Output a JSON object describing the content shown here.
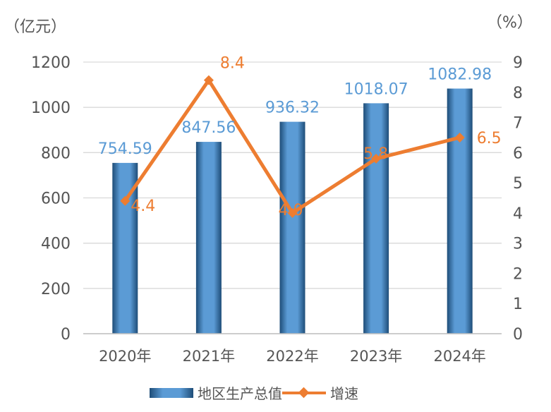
{
  "chart_data": {
    "type": "bar",
    "categories": [
      "2020年",
      "2021年",
      "2022年",
      "2023年",
      "2024年"
    ],
    "series": [
      {
        "name": "地区生产总值",
        "type": "bar",
        "axis": "left",
        "values": [
          754.59,
          847.56,
          936.32,
          1018.07,
          1082.98
        ],
        "labels": [
          "754.59",
          "847.56",
          "936.32",
          "1018.07",
          "1082.98"
        ],
        "color": "#5b9bd5"
      },
      {
        "name": "增速",
        "type": "line",
        "axis": "right",
        "values": [
          4.4,
          8.4,
          4.0,
          5.8,
          6.5
        ],
        "labels": [
          "4.4",
          "8.4",
          "4.0",
          "5.8",
          "6.5"
        ],
        "color": "#ed7d31"
      }
    ],
    "left_axis": {
      "unit": "（亿元）",
      "range": [
        0,
        1200
      ],
      "ticks": [
        "0",
        "200",
        "400",
        "600",
        "800",
        "1000",
        "1200"
      ]
    },
    "right_axis": {
      "unit": "（%）",
      "range": [
        0,
        9
      ],
      "ticks": [
        "0",
        "1",
        "2",
        "3",
        "4",
        "5",
        "6",
        "7",
        "8",
        "9"
      ]
    },
    "grid": true,
    "legend_position": "bottom",
    "colors": {
      "bar": "#5b9bd5",
      "bar_dark": "#1e4d78",
      "line": "#ed7d31",
      "bar_label": "#5b9bd5",
      "line_label": "#ed7d31",
      "grid": "#d9d9d9",
      "axis_text": "#555555"
    }
  }
}
